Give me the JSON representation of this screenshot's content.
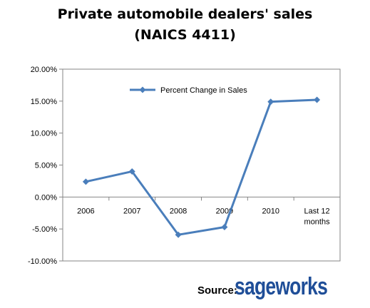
{
  "chart_data": {
    "type": "line",
    "title_lines": [
      "Private automobile dealers' sales",
      "(NAICS 4411)"
    ],
    "categories": [
      "2006",
      "2007",
      "2008",
      "2009",
      "2010",
      "Last 12 months"
    ],
    "category_label_lines": [
      [
        "2006"
      ],
      [
        "2007"
      ],
      [
        "2008"
      ],
      [
        "2009"
      ],
      [
        "2010"
      ],
      [
        "Last 12",
        "months"
      ]
    ],
    "series": [
      {
        "name": "Percent Change in Sales",
        "values": [
          2.4,
          4.0,
          -5.9,
          -4.7,
          14.9,
          15.2
        ],
        "color": "#4a7ebb"
      }
    ],
    "y_ticks": [
      "20.00%",
      "15.00%",
      "10.00%",
      "5.00%",
      "0.00%",
      "-5.00%",
      "-10.00%"
    ],
    "ylim": [
      -10,
      20
    ],
    "grid": false,
    "legend_position": "top-left-inside",
    "axis_color": "#868686"
  },
  "source": {
    "label": "Source:",
    "brand": "sageworks",
    "brand_color": "#1f4e98"
  }
}
